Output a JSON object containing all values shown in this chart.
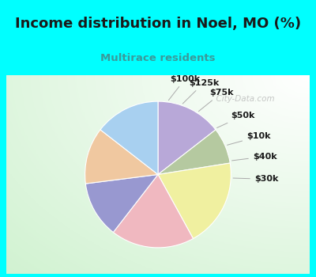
{
  "title": "Income distribution in Noel, MO (%)",
  "subtitle": "Multirace residents",
  "labels": [
    "$100k",
    "$125k",
    "$75k",
    "$50k",
    "$10k",
    "$40k",
    "$30k"
  ],
  "sizes": [
    14.5,
    8.0,
    19.5,
    18.5,
    12.5,
    12.5,
    14.5
  ],
  "colors": [
    "#b8a8d8",
    "#b5c9a0",
    "#f0f0a0",
    "#f0b8c0",
    "#9898d0",
    "#f0c8a0",
    "#a8d0f0"
  ],
  "bg_cyan": "#00ffff",
  "title_color": "#1a1a1a",
  "subtitle_color": "#3a9a9a",
  "label_color": "#1a1a1a",
  "watermark": "City-Data.com",
  "title_fontsize": 13.0,
  "subtitle_fontsize": 9.5,
  "label_fontsize": 8.0
}
